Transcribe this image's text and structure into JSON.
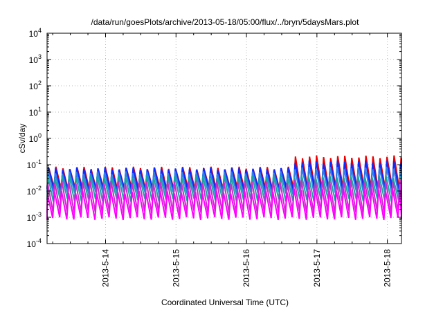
{
  "chart_data": {
    "type": "line",
    "title": "/data/run/goesPlots/archive/2013-05-18/05:00/flux/../bryn/5daysMars.plot",
    "xlabel": "Coordinated Universal Time (UTC)",
    "ylabel": "cSv/day",
    "y_scale": "log",
    "ylim": [
      0.0001,
      10000
    ],
    "y_ticks": [
      {
        "base": "10",
        "exp": "4"
      },
      {
        "base": "10",
        "exp": "3"
      },
      {
        "base": "10",
        "exp": "2"
      },
      {
        "base": "10",
        "exp": "1"
      },
      {
        "base": "10",
        "exp": "0"
      },
      {
        "base": "10",
        "exp": "-1"
      },
      {
        "base": "10",
        "exp": "-2"
      },
      {
        "base": "10",
        "exp": "-3"
      },
      {
        "base": "10",
        "exp": "-4"
      }
    ],
    "x_ticks": [
      "2013-5-14",
      "2013-5-15",
      "2013-5-16",
      "2013-5-17",
      "2013-5-18"
    ],
    "xlim": [
      "2013-05-13 04:00",
      "2013-05-18 05:00"
    ],
    "grid": true,
    "x_grid_positions": [
      1,
      2,
      3,
      4,
      5
    ],
    "x_range_days": [
      0.17,
      5.2
    ],
    "sawtooth_period_days": 0.1,
    "regime_change_day": 3.6,
    "series": [
      {
        "color": "#ee0000",
        "peak_before": 0.075,
        "peak_after": 0.2,
        "trough": 0.012
      },
      {
        "color": "#0a2aff",
        "peak_before": 0.07,
        "peak_after": 0.13,
        "trough": 0.011
      },
      {
        "color": "#2f7fe6",
        "peak_before": 0.05,
        "peak_after": 0.075,
        "trough": 0.008
      },
      {
        "color": "#18a79e",
        "peak_before": 0.035,
        "peak_after": 0.035,
        "trough": 0.0045
      },
      {
        "color": "#cc2bcc",
        "peak_before": 0.022,
        "peak_after": 0.024,
        "trough": 0.0016
      },
      {
        "color": "#ff00ff",
        "peak_before": 0.009,
        "peak_after": 0.011,
        "trough": 0.0009
      }
    ]
  }
}
